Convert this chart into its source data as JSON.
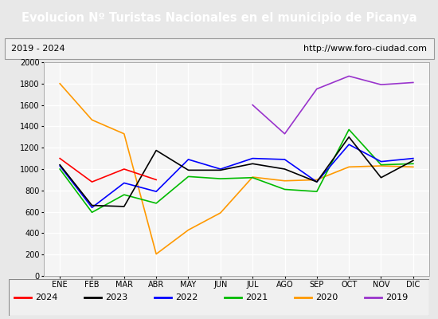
{
  "title": "Evolucion Nº Turistas Nacionales en el municipio de Picanya",
  "subtitle_left": "2019 - 2024",
  "subtitle_right": "http://www.foro-ciudad.com",
  "title_bg_color": "#4472c4",
  "title_text_color": "#ffffff",
  "months": [
    "ENE",
    "FEB",
    "MAR",
    "ABR",
    "MAY",
    "JUN",
    "JUL",
    "AGO",
    "SEP",
    "OCT",
    "NOV",
    "DIC"
  ],
  "ylim": [
    0,
    2000
  ],
  "yticks": [
    0,
    200,
    400,
    600,
    800,
    1000,
    1200,
    1400,
    1600,
    1800,
    2000
  ],
  "series": {
    "2024": {
      "color": "#ff0000",
      "data": [
        1100,
        880,
        1000,
        900,
        null,
        null,
        null,
        null,
        null,
        null,
        null,
        null
      ]
    },
    "2023": {
      "color": "#000000",
      "data": [
        1040,
        660,
        650,
        1175,
        990,
        990,
        1050,
        1000,
        880,
        1300,
        920,
        1080
      ]
    },
    "2022": {
      "color": "#0000ff",
      "data": [
        1030,
        640,
        870,
        790,
        1090,
        1000,
        1100,
        1090,
        880,
        1230,
        1070,
        1100
      ]
    },
    "2021": {
      "color": "#00bb00",
      "data": [
        1000,
        595,
        760,
        680,
        930,
        910,
        920,
        810,
        790,
        1370,
        1040,
        1050
      ]
    },
    "2020": {
      "color": "#ff9900",
      "data": [
        1800,
        1460,
        1330,
        205,
        430,
        590,
        925,
        890,
        900,
        1020,
        1030,
        1020
      ]
    },
    "2019": {
      "color": "#9933cc",
      "data": [
        null,
        null,
        null,
        null,
        null,
        null,
        1600,
        1330,
        1750,
        1870,
        1790,
        1810
      ]
    }
  },
  "bg_color": "#e8e8e8",
  "plot_bg_color": "#f5f5f5",
  "grid_color": "#ffffff",
  "legend_order": [
    "2024",
    "2023",
    "2022",
    "2021",
    "2020",
    "2019"
  ],
  "title_fontsize": 10.5,
  "tick_fontsize": 7,
  "legend_fontsize": 8
}
